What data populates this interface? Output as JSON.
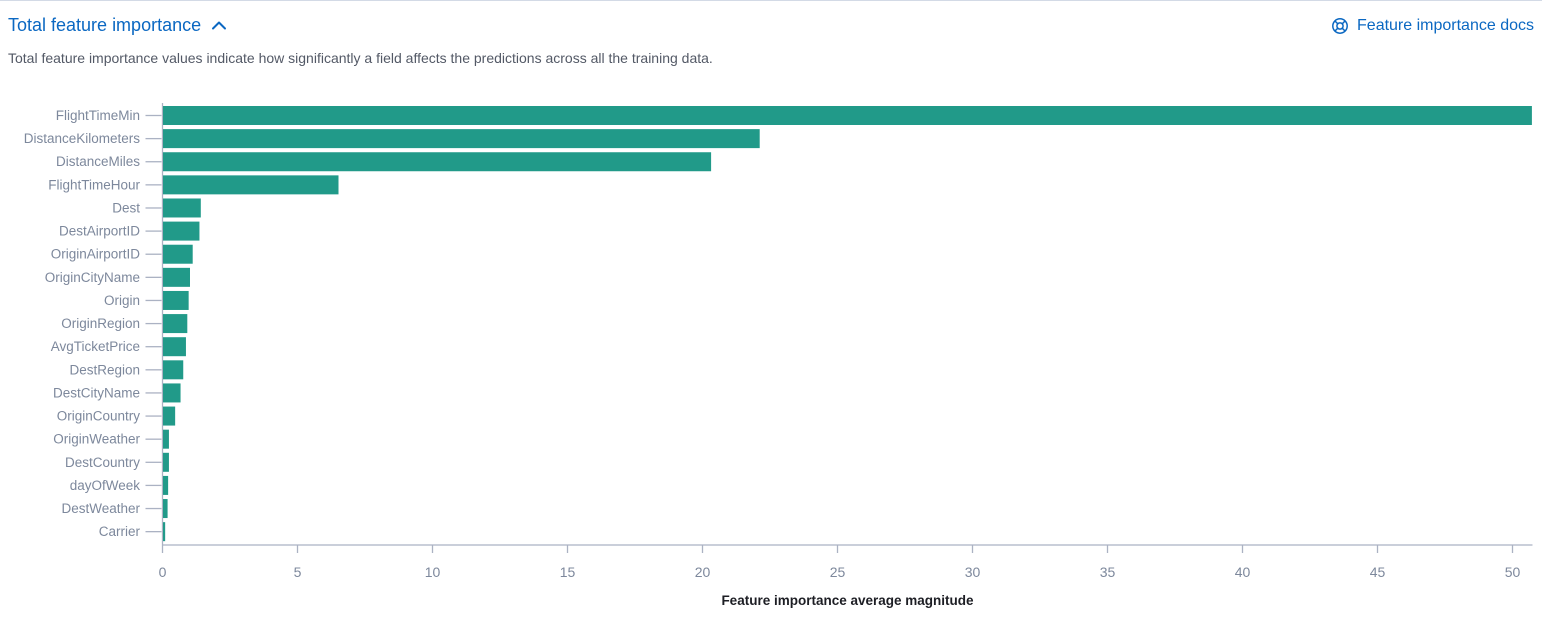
{
  "header": {
    "title": "Total feature importance",
    "collapse_icon": "chevron-up",
    "docs_link_label": "Feature importance docs",
    "docs_link_icon": "help-life-buoy"
  },
  "description": "Total feature importance values indicate how significantly a field affects the predictions across all the training data.",
  "colors": {
    "bar": "#219a89",
    "link": "#0b68c2",
    "axis_label": "#7d889c",
    "axis_line": "#abb2c3",
    "axis_title": "#1d1e24",
    "description_text": "#535966"
  },
  "chart_data": {
    "type": "bar",
    "orientation": "horizontal",
    "title": "Total feature importance",
    "xlabel": "Feature importance average magnitude",
    "ylabel": "",
    "categories": [
      "FlightTimeMin",
      "DistanceKilometers",
      "DistanceMiles",
      "FlightTimeHour",
      "Dest",
      "DestAirportID",
      "OriginAirportID",
      "OriginCityName",
      "Origin",
      "OriginRegion",
      "AvgTicketPrice",
      "DestRegion",
      "DestCityName",
      "OriginCountry",
      "OriginWeather",
      "DestCountry",
      "dayOfWeek",
      "DestWeather",
      "Carrier"
    ],
    "values": [
      50.7,
      22.1,
      20.3,
      6.5,
      1.4,
      1.35,
      1.1,
      1.0,
      0.95,
      0.9,
      0.85,
      0.75,
      0.65,
      0.45,
      0.22,
      0.22,
      0.19,
      0.17,
      0.08
    ],
    "xlim": [
      0,
      50.74
    ],
    "xticks": [
      0,
      5,
      10,
      15,
      20,
      25,
      30,
      35,
      40,
      45,
      50
    ],
    "grid": false,
    "legend": false
  }
}
